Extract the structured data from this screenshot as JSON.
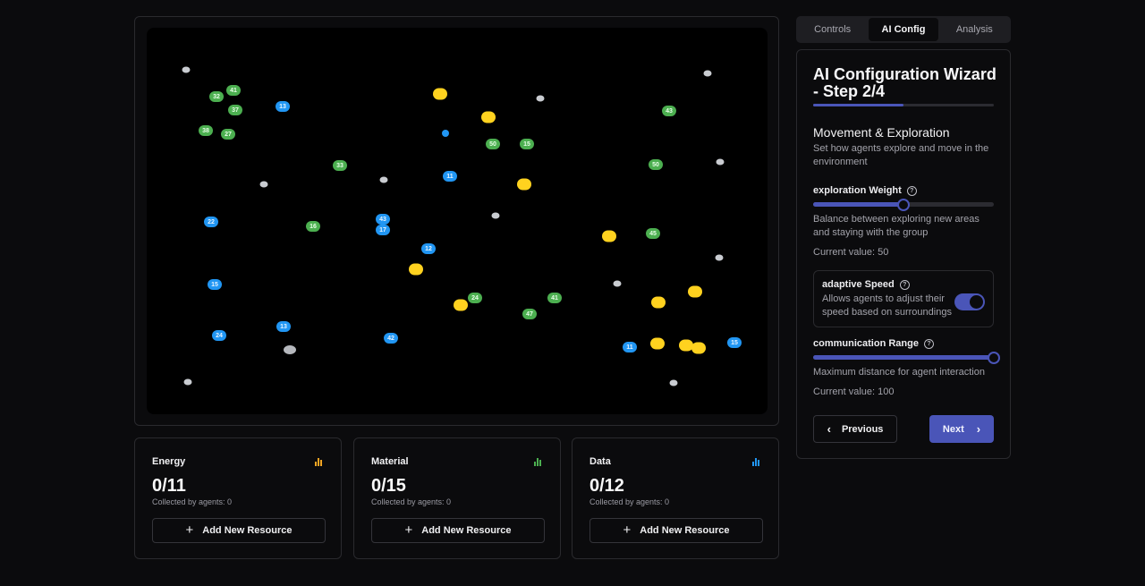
{
  "tabs": [
    {
      "label": "Controls",
      "active": false
    },
    {
      "label": "AI Config",
      "active": true
    },
    {
      "label": "Analysis",
      "active": false
    }
  ],
  "wizard": {
    "title": "AI Configuration Wizard - Step 2/4",
    "step": 2,
    "total_steps": 4,
    "progress_fraction": 0.5,
    "section_title": "Movement & Exploration",
    "section_desc": "Set how agents explore and move in the environment",
    "exploration": {
      "label": "exploration Weight",
      "value": 50,
      "max": 100,
      "help": "Balance between exploring new areas and staying with the group",
      "current": "Current value: 50"
    },
    "adaptive": {
      "label": "adaptive Speed",
      "desc": "Allows agents to adjust their speed based on surroundings",
      "enabled": true
    },
    "communication": {
      "label": "communication Range",
      "value": 100,
      "max": 100,
      "help": "Maximum distance for agent interaction",
      "current": "Current value: 100"
    },
    "prev_label": "Previous",
    "next_label": "Next"
  },
  "resources": [
    {
      "name": "Energy",
      "value": "0/11",
      "collected": "Collected by agents: 0",
      "button": "Add New Resource",
      "color": "#f5a623"
    },
    {
      "name": "Material",
      "value": "0/15",
      "collected": "Collected by agents: 0",
      "button": "Add New Resource",
      "color": "#4caf50"
    },
    {
      "name": "Data",
      "value": "0/12",
      "collected": "Collected by agents: 0",
      "button": "Add New Resource",
      "color": "#2196f3"
    }
  ],
  "colors": {
    "accent": "#4a55b8",
    "agent_green": "#4caf50",
    "agent_blue": "#2196f3",
    "agent_yellow": "#ffd21f",
    "obstacle": "#c9ccd1"
  }
}
